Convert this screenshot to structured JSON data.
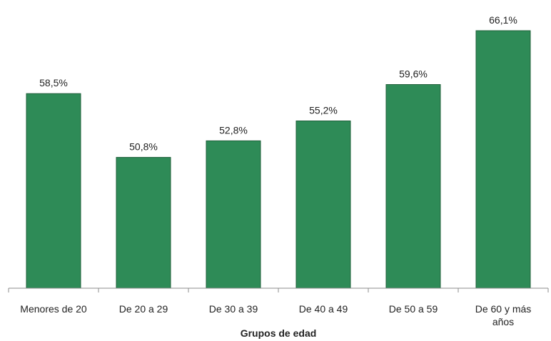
{
  "chart_data": {
    "type": "bar",
    "categories": [
      "Menores de 20",
      "De 20 a 29",
      "De 30 a 39",
      "De 40 a 49",
      "De 50 a 59",
      "De 60 y más años"
    ],
    "values": [
      58.5,
      50.8,
      52.8,
      55.2,
      59.6,
      66.1
    ],
    "data_labels": [
      "58,5%",
      "50,8%",
      "52,8%",
      "55,2%",
      "59,6%",
      "66,1%"
    ],
    "title": "",
    "xlabel": "Grupos de edad",
    "ylabel": "",
    "ylim": [
      35,
      66.1
    ],
    "grid": false,
    "bar_color": "#2e8b57"
  }
}
